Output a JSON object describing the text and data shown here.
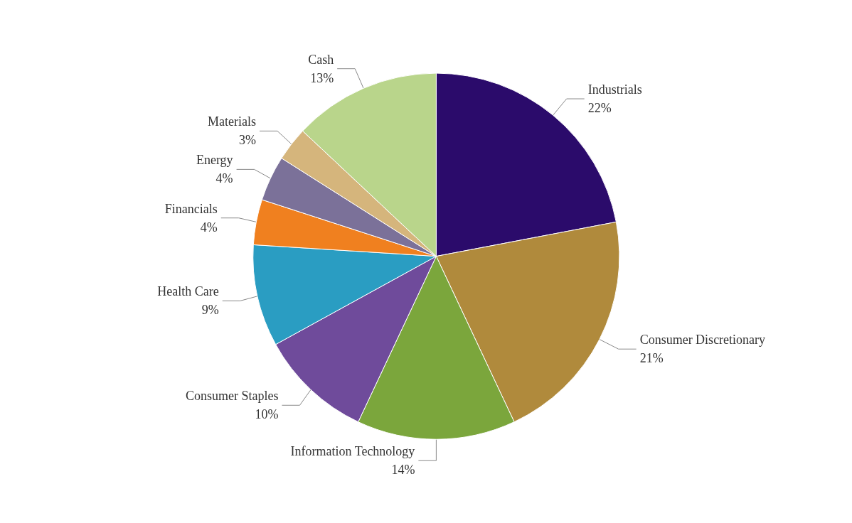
{
  "chart_data": {
    "type": "pie",
    "categories": [
      "Industrials",
      "Consumer Discretionary",
      "Information Technology",
      "Consumer Staples",
      "Health Care",
      "Financials",
      "Energy",
      "Materials",
      "Cash"
    ],
    "values": [
      22,
      21,
      14,
      10,
      9,
      4,
      4,
      3,
      13
    ],
    "value_labels": [
      "22%",
      "21%",
      "14%",
      "10%",
      "9%",
      "4%",
      "4%",
      "3%",
      "13%"
    ],
    "colors": [
      "#2b0b6b",
      "#b08a3c",
      "#7ba63c",
      "#6f4b9b",
      "#2a9dc2",
      "#f0801f",
      "#7b7199",
      "#d5b57c",
      "#b9d58b"
    ]
  }
}
